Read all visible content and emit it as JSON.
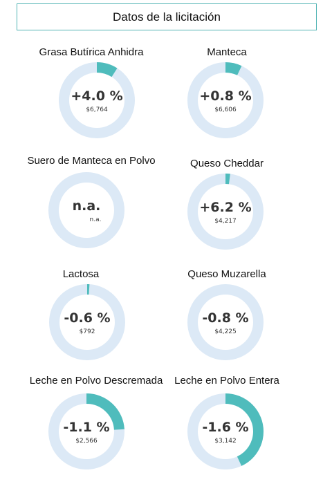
{
  "header": {
    "title": "Datos de la licitación"
  },
  "colors": {
    "ring_track": "#dce9f6",
    "ring_fill": "#4fbcbc",
    "border": "#4fb3b3"
  },
  "products": [
    {
      "label": "Grasa Butírica Anhidra",
      "change": "+4.0 %",
      "price": "$6,764",
      "ring_fraction": 0.09
    },
    {
      "label": "Manteca",
      "change": "+0.8 %",
      "price": "$6,606",
      "ring_fraction": 0.07
    },
    {
      "label": "Suero de Manteca en Polvo",
      "change": "n.a.",
      "price": "n.a.",
      "ring_fraction": 0
    },
    {
      "label": "Queso Cheddar",
      "change": "+6.2 %",
      "price": "$4,217",
      "ring_fraction": 0.02
    },
    {
      "label": "Lactosa",
      "change": "-0.6 %",
      "price": "$792",
      "ring_fraction": 0.01
    },
    {
      "label": "Queso Muzarella",
      "change": "-0.8 %",
      "price": "$4,225",
      "ring_fraction": 0
    },
    {
      "label": "Leche en Polvo Descremada",
      "change": "-1.1 %",
      "price": "$2,566",
      "ring_fraction": 0.24
    },
    {
      "label": "Leche en Polvo Entera",
      "change": "-1.6 %",
      "price": "$3,142",
      "ring_fraction": 0.43
    }
  ]
}
